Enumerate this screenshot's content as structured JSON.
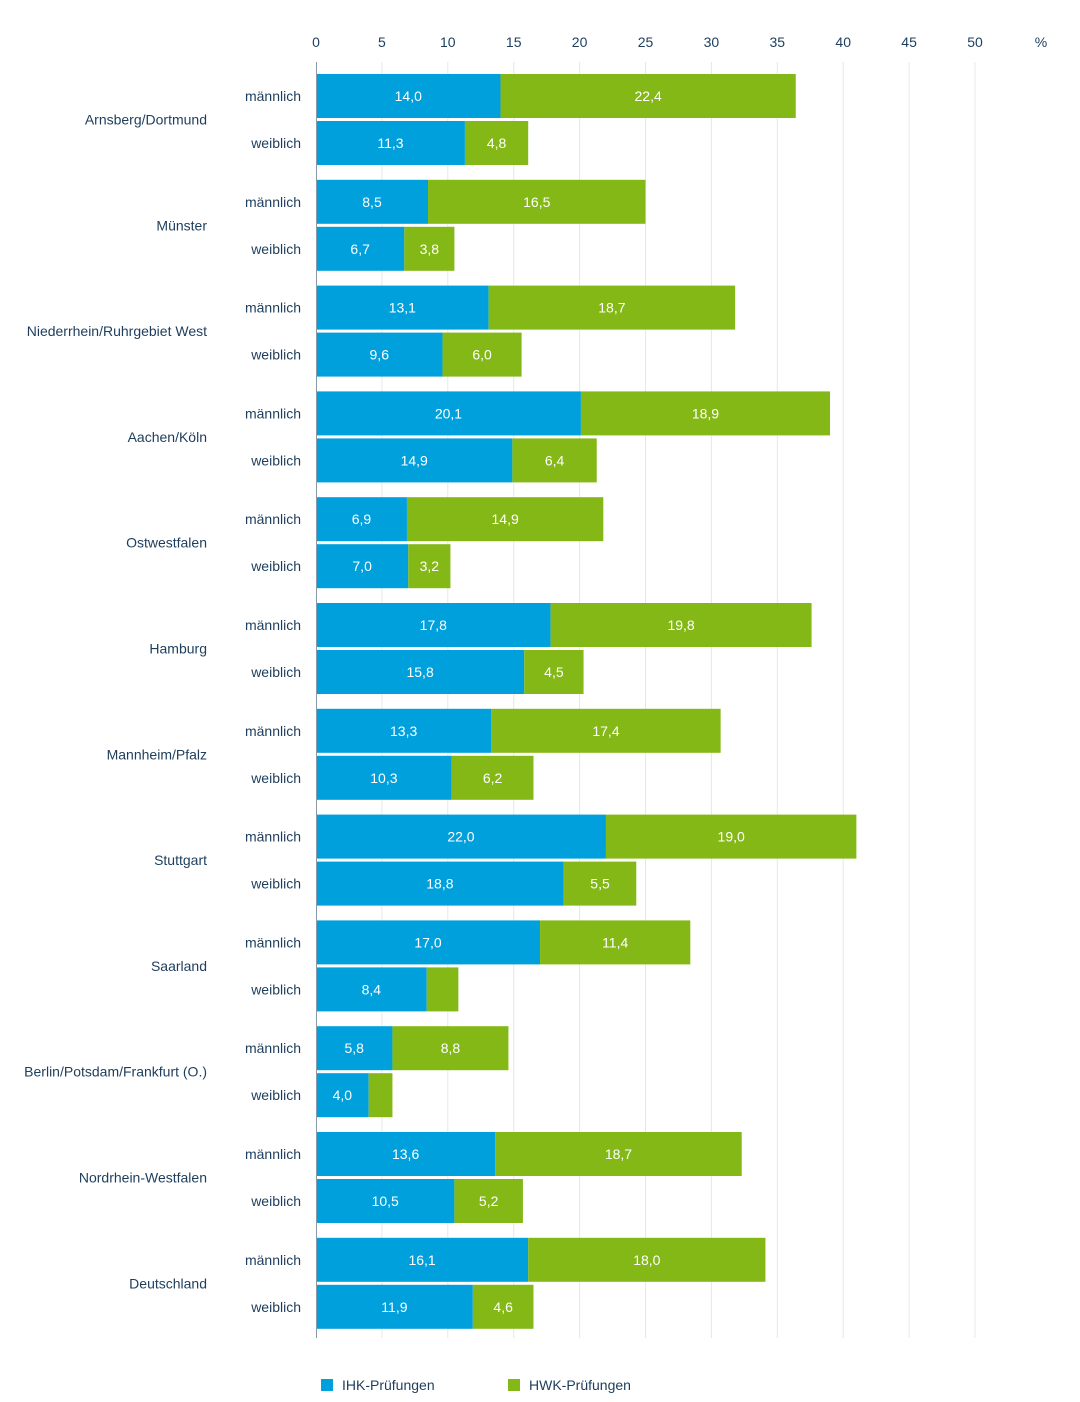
{
  "chart_data": {
    "type": "bar",
    "orientation": "horizontal",
    "stacked": true,
    "unit": "%",
    "xlim": [
      0,
      50
    ],
    "x_ticks": [
      "0",
      "5",
      "10",
      "15",
      "20",
      "25",
      "30",
      "35",
      "40",
      "45",
      "50"
    ],
    "grid": true,
    "legend_position": "bottom",
    "series": [
      {
        "name": "IHK-Prüfungen",
        "color": "#00a0dc"
      },
      {
        "name": "HWK-Prüfungen",
        "color": "#84b817"
      }
    ],
    "groups": [
      {
        "region": "Arnsberg/Dortmund",
        "rows": [
          {
            "gender": "männlich",
            "ihk": 14.0,
            "ihk_label": "14,0",
            "hwk": 22.4,
            "hwk_label": "22,4"
          },
          {
            "gender": "weiblich",
            "ihk": 11.3,
            "ihk_label": "11,3",
            "hwk": 4.8,
            "hwk_label": "4,8"
          }
        ]
      },
      {
        "region": "Münster",
        "rows": [
          {
            "gender": "männlich",
            "ihk": 8.5,
            "ihk_label": "8,5",
            "hwk": 16.5,
            "hwk_label": "16,5"
          },
          {
            "gender": "weiblich",
            "ihk": 6.7,
            "ihk_label": "6,7",
            "hwk": 3.8,
            "hwk_label": "3,8"
          }
        ]
      },
      {
        "region": "Niederrhein/Ruhrgebiet West",
        "rows": [
          {
            "gender": "männlich",
            "ihk": 13.1,
            "ihk_label": "13,1",
            "hwk": 18.7,
            "hwk_label": "18,7"
          },
          {
            "gender": "weiblich",
            "ihk": 9.6,
            "ihk_label": "9,6",
            "hwk": 6.0,
            "hwk_label": "6,0"
          }
        ]
      },
      {
        "region": "Aachen/Köln",
        "rows": [
          {
            "gender": "männlich",
            "ihk": 20.1,
            "ihk_label": "20,1",
            "hwk": 18.9,
            "hwk_label": "18,9"
          },
          {
            "gender": "weiblich",
            "ihk": 14.9,
            "ihk_label": "14,9",
            "hwk": 6.4,
            "hwk_label": "6,4"
          }
        ]
      },
      {
        "region": "Ostwestfalen",
        "rows": [
          {
            "gender": "männlich",
            "ihk": 6.9,
            "ihk_label": "6,9",
            "hwk": 14.9,
            "hwk_label": "14,9"
          },
          {
            "gender": "weiblich",
            "ihk": 7.0,
            "ihk_label": "7,0",
            "hwk": 3.2,
            "hwk_label": "3,2"
          }
        ]
      },
      {
        "region": "Hamburg",
        "rows": [
          {
            "gender": "männlich",
            "ihk": 17.8,
            "ihk_label": "17,8",
            "hwk": 19.8,
            "hwk_label": "19,8"
          },
          {
            "gender": "weiblich",
            "ihk": 15.8,
            "ihk_label": "15,8",
            "hwk": 4.5,
            "hwk_label": "4,5"
          }
        ]
      },
      {
        "region": "Mannheim/Pfalz",
        "rows": [
          {
            "gender": "männlich",
            "ihk": 13.3,
            "ihk_label": "13,3",
            "hwk": 17.4,
            "hwk_label": "17,4"
          },
          {
            "gender": "weiblich",
            "ihk": 10.3,
            "ihk_label": "10,3",
            "hwk": 6.2,
            "hwk_label": "6,2"
          }
        ]
      },
      {
        "region": "Stuttgart",
        "rows": [
          {
            "gender": "männlich",
            "ihk": 22.0,
            "ihk_label": "22,0",
            "hwk": 19.0,
            "hwk_label": "19,0"
          },
          {
            "gender": "weiblich",
            "ihk": 18.8,
            "ihk_label": "18,8",
            "hwk": 5.5,
            "hwk_label": "5,5"
          }
        ]
      },
      {
        "region": "Saarland",
        "rows": [
          {
            "gender": "männlich",
            "ihk": 17.0,
            "ihk_label": "17,0",
            "hwk": 11.4,
            "hwk_label": "11,4"
          },
          {
            "gender": "weiblich",
            "ihk": 8.4,
            "ihk_label": "8,4",
            "hwk": 2.4,
            "hwk_label": ""
          }
        ]
      },
      {
        "region": "Berlin/Potsdam/Frankfurt (O.)",
        "rows": [
          {
            "gender": "männlich",
            "ihk": 5.8,
            "ihk_label": "5,8",
            "hwk": 8.8,
            "hwk_label": "8,8"
          },
          {
            "gender": "weiblich",
            "ihk": 4.0,
            "ihk_label": "4,0",
            "hwk": 1.8,
            "hwk_label": ""
          }
        ]
      },
      {
        "region": "Nordrhein-Westfalen",
        "rows": [
          {
            "gender": "männlich",
            "ihk": 13.6,
            "ihk_label": "13,6",
            "hwk": 18.7,
            "hwk_label": "18,7"
          },
          {
            "gender": "weiblich",
            "ihk": 10.5,
            "ihk_label": "10,5",
            "hwk": 5.2,
            "hwk_label": "5,2"
          }
        ]
      },
      {
        "region": "Deutschland",
        "rows": [
          {
            "gender": "männlich",
            "ihk": 16.1,
            "ihk_label": "16,1",
            "hwk": 18.0,
            "hwk_label": "18,0"
          },
          {
            "gender": "weiblich",
            "ihk": 11.9,
            "ihk_label": "11,9",
            "hwk": 4.6,
            "hwk_label": "4,6"
          }
        ]
      }
    ]
  }
}
